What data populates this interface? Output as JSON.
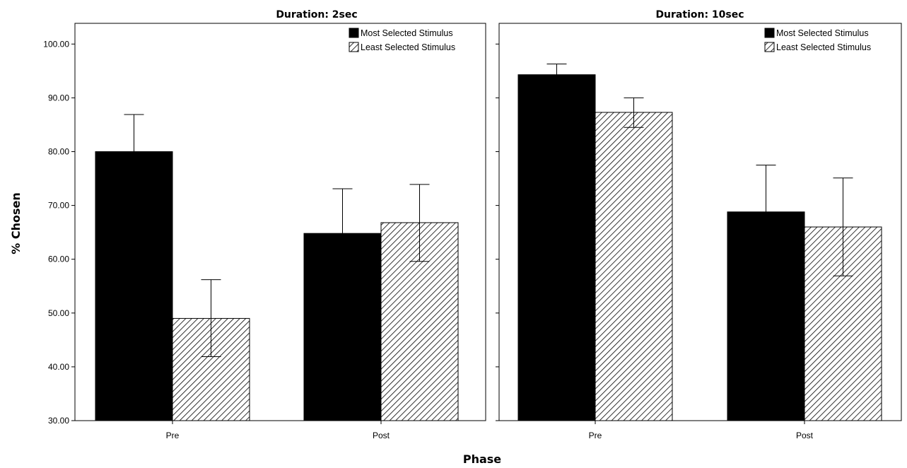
{
  "chart_data": {
    "type": "bar",
    "ylabel": "% Chosen",
    "xlabel": "Phase",
    "ylim": [
      30,
      100
    ],
    "yticks": [
      "30.00",
      "40.00",
      "50.00",
      "60.00",
      "70.00",
      "80.00",
      "90.00",
      "100.00"
    ],
    "legend_position": "top-right",
    "categories": [
      "Pre",
      "Post"
    ],
    "series_style": {
      "Most Selected Stimulus": {
        "fill": "#000000",
        "pattern": "solid"
      },
      "Least Selected Stimulus": {
        "fill": "#ffffff",
        "pattern": "diagonal-hatch"
      }
    },
    "panels": [
      {
        "title": "Duration: 2sec",
        "series": [
          {
            "name": "Most Selected Stimulus",
            "values": [
              80.0,
              64.8
            ],
            "error_upper": [
              86.9,
              73.1
            ]
          },
          {
            "name": "Least Selected Stimulus",
            "values": [
              49.0,
              66.8
            ],
            "error_lower": [
              41.9,
              59.6
            ],
            "error_upper": [
              56.2,
              73.9
            ]
          }
        ]
      },
      {
        "title": "Duration: 10sec",
        "series": [
          {
            "name": "Most Selected Stimulus",
            "values": [
              94.3,
              68.8
            ],
            "error_upper": [
              96.3,
              77.5
            ]
          },
          {
            "name": "Least Selected Stimulus",
            "values": [
              87.3,
              66.0
            ],
            "error_lower": [
              84.5,
              56.9
            ],
            "error_upper": [
              90.0,
              75.1
            ]
          }
        ]
      }
    ]
  }
}
